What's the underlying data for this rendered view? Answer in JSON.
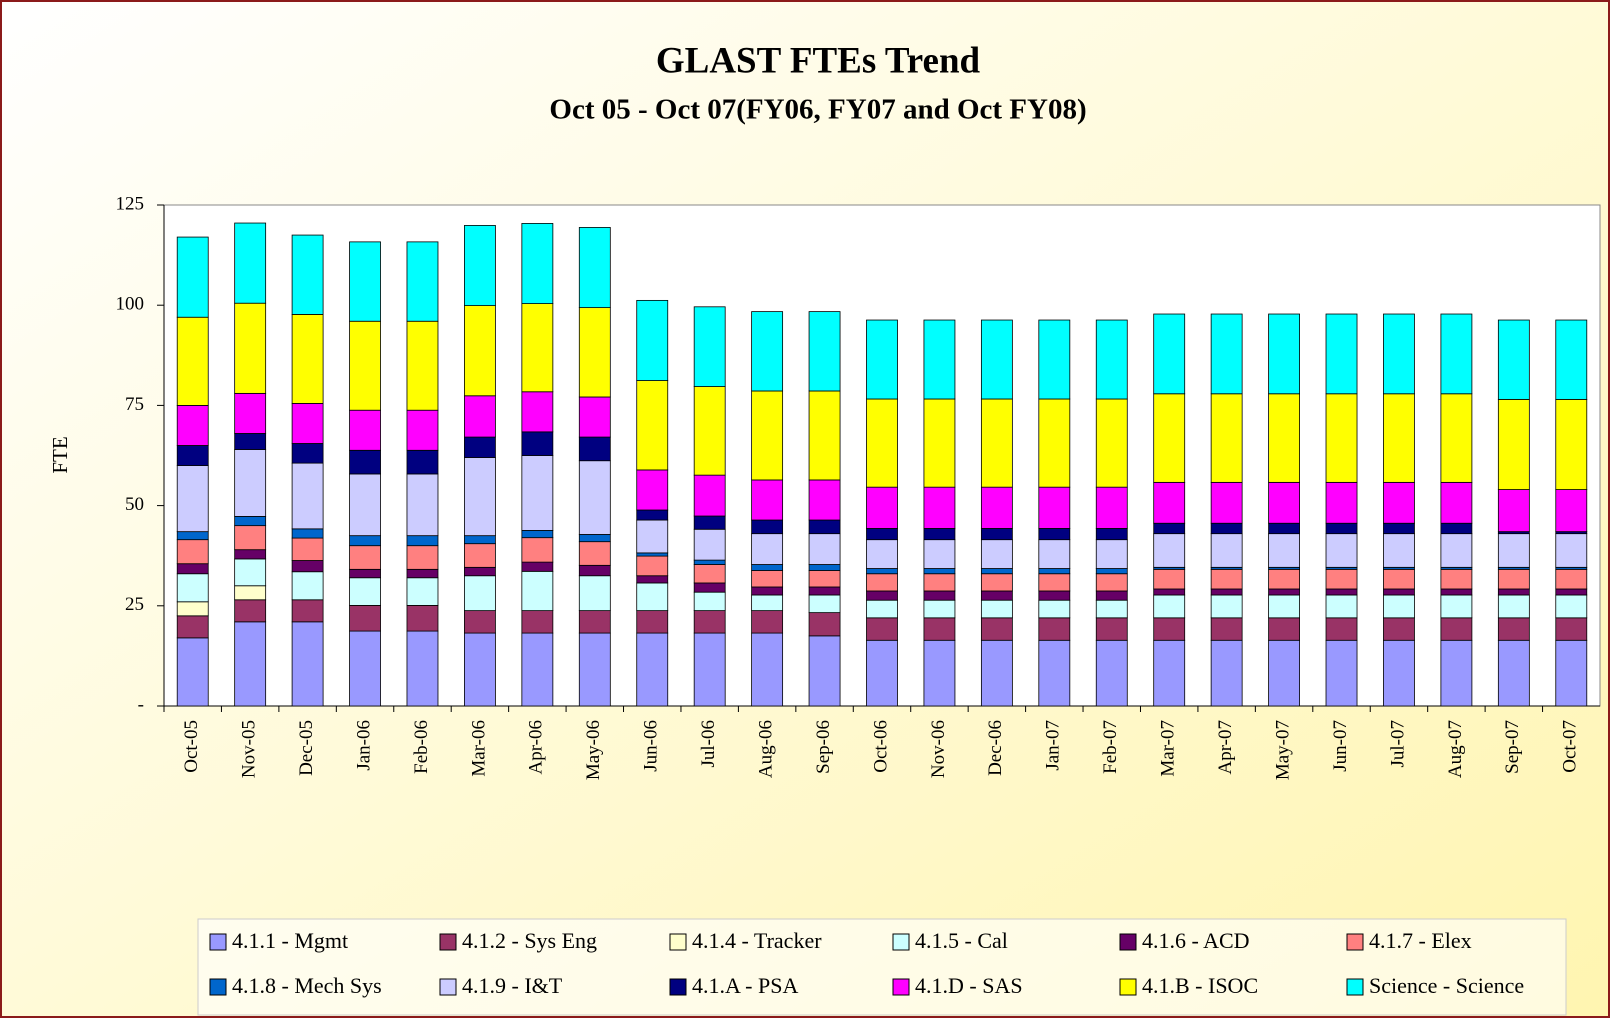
{
  "chart_data": {
    "type": "stacked_bar",
    "title": "GLAST FTEs Trend",
    "subtitle": "Oct 05 - Oct 07(FY06, FY07 and Oct FY08)",
    "y_label": "FTE",
    "categories": [
      "Oct-05",
      "Nov-05",
      "Dec-05",
      "Jan-06",
      "Feb-06",
      "Mar-06",
      "Apr-06",
      "May-06",
      "Jun-06",
      "Jul-06",
      "Aug-06",
      "Sep-06",
      "Oct-06",
      "Nov-06",
      "Dec-06",
      "Jan-07",
      "Feb-07",
      "Mar-07",
      "Apr-07",
      "May-07",
      "Jun-07",
      "Jul-07",
      "Aug-07",
      "Sep-07",
      "Oct-07"
    ],
    "ylim": [
      0,
      125
    ],
    "yticks": [
      {
        "value": 0,
        "label": "-"
      },
      25,
      50,
      75,
      100,
      125
    ],
    "series": [
      {
        "name": "4.1.1 - Mgmt",
        "color": "#9999ff",
        "values": [
          17,
          21,
          21,
          18.7,
          18.7,
          18.2,
          18.2,
          18.2,
          18.2,
          18.2,
          18.2,
          17.5,
          16.4,
          16.4,
          16.4,
          16.4,
          16.4,
          16.4,
          16.4,
          16.4,
          16.4,
          16.4,
          16.4,
          16.4,
          16.4
        ]
      },
      {
        "name": "4.1.2 - Sys Eng",
        "color": "#993366",
        "values": [
          5.5,
          5.5,
          5.5,
          6.4,
          6.4,
          5.6,
          5.6,
          5.6,
          5.6,
          5.6,
          5.6,
          5.8,
          5.6,
          5.6,
          5.6,
          5.6,
          5.6,
          5.6,
          5.6,
          5.6,
          5.6,
          5.6,
          5.6,
          5.6,
          5.6
        ]
      },
      {
        "name": "4.1.4 - Tracker",
        "color": "#ffffcc",
        "values": [
          3.5,
          3.5,
          0,
          0,
          0,
          0,
          0,
          0,
          0,
          0,
          0,
          0,
          0,
          0,
          0,
          0,
          0,
          0,
          0,
          0,
          0,
          0,
          0,
          0,
          0
        ]
      },
      {
        "name": "4.1.5 - Cal",
        "color": "#ccffff",
        "values": [
          7,
          6.7,
          7,
          6.9,
          6.9,
          8.7,
          9.8,
          8.7,
          6.9,
          4.6,
          3.9,
          4.4,
          4.4,
          4.4,
          4.4,
          4.4,
          4.4,
          5.7,
          5.7,
          5.7,
          5.7,
          5.7,
          5.7,
          5.7,
          5.7
        ]
      },
      {
        "name": "4.1.6 - ACD",
        "color": "#660066",
        "values": [
          2.5,
          2.3,
          2.8,
          2.1,
          2.1,
          2.1,
          2.3,
          2.6,
          1.8,
          2.3,
          2,
          2,
          2.3,
          2.3,
          2.3,
          2.3,
          2.3,
          1.5,
          1.5,
          1.5,
          1.5,
          1.5,
          1.5,
          1.5,
          1.5
        ]
      },
      {
        "name": "4.1.7 - Elex",
        "color": "#ff8080",
        "values": [
          6,
          6,
          5.6,
          5.9,
          5.9,
          5.9,
          6.1,
          5.9,
          4.9,
          4.6,
          4.1,
          4.1,
          4.3,
          4.3,
          4.3,
          4.3,
          4.3,
          4.9,
          4.9,
          4.9,
          4.9,
          4.9,
          4.9,
          4.9,
          4.9
        ]
      },
      {
        "name": "4.1.8 - Mech Sys",
        "color": "#0066cc",
        "values": [
          2,
          2.3,
          2.3,
          2.5,
          2.5,
          2,
          1.8,
          1.8,
          0.8,
          1.1,
          1.5,
          1.5,
          1.3,
          1.3,
          1.3,
          1.3,
          1.3,
          0.5,
          0.5,
          0.5,
          0.5,
          0.5,
          0.5,
          0.5,
          0.5
        ]
      },
      {
        "name": "4.1.9 - I&T",
        "color": "#ccccff",
        "values": [
          16.5,
          16.7,
          16.4,
          15.4,
          15.4,
          19.5,
          18.7,
          18.4,
          8.2,
          7.7,
          7.7,
          7.7,
          7.2,
          7.2,
          7.2,
          7.2,
          7.2,
          8.4,
          8.4,
          8.4,
          8.4,
          8.4,
          8.4,
          8.4,
          8.4
        ]
      },
      {
        "name": "4.1.A - PSA",
        "color": "#000080",
        "values": [
          5,
          4,
          4.9,
          5.9,
          5.9,
          5.1,
          5.9,
          5.9,
          2.5,
          3.3,
          3.4,
          3.4,
          2.8,
          2.8,
          2.8,
          2.8,
          2.8,
          2.6,
          2.6,
          2.6,
          2.6,
          2.6,
          2.6,
          0.5,
          0.5
        ]
      },
      {
        "name": "4.1.D - SAS",
        "color": "#ff00ff",
        "values": [
          10,
          10,
          10,
          10,
          10,
          10.3,
          10,
          10,
          10,
          10.2,
          10,
          10,
          10.3,
          10.3,
          10.3,
          10.3,
          10.3,
          10.2,
          10.2,
          10.2,
          10.2,
          10.2,
          10.2,
          10.5,
          10.5
        ]
      },
      {
        "name": "4.1.B - ISOC",
        "color": "#ffff00",
        "values": [
          22,
          22.5,
          22.2,
          22.2,
          22.2,
          22.5,
          22,
          22.3,
          22.3,
          22.1,
          22.2,
          22.2,
          22,
          22,
          22,
          22,
          22,
          22.1,
          22.1,
          22.1,
          22.1,
          22.1,
          22.1,
          22.5,
          22.5
        ]
      },
      {
        "name": "Science - Science",
        "color": "#00ffff",
        "values": [
          20,
          20,
          19.8,
          19.8,
          19.8,
          20,
          20,
          20,
          20,
          19.9,
          19.8,
          19.8,
          19.7,
          19.7,
          19.7,
          19.7,
          19.7,
          19.9,
          19.9,
          19.9,
          19.9,
          19.9,
          19.9,
          19.8,
          19.8
        ]
      }
    ]
  }
}
